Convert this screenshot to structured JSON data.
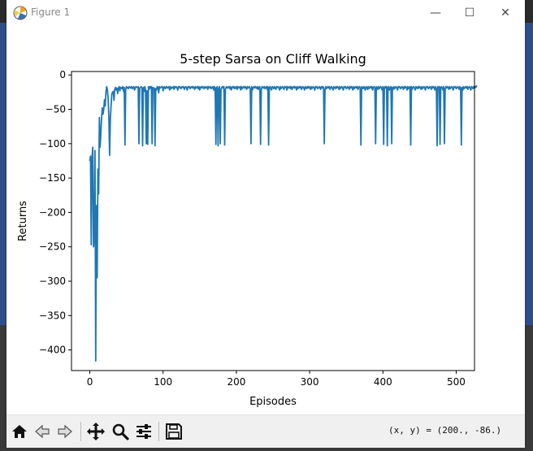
{
  "window": {
    "title": "Figure 1",
    "minimize_symbol": "—",
    "maximize_symbol": "☐",
    "close_symbol": "✕"
  },
  "toolbar": {
    "buttons": [
      "home-icon",
      "back-icon",
      "forward-icon",
      "pan-icon",
      "zoom-icon",
      "configure-subplots-icon",
      "save-icon"
    ],
    "coords_text": "(x, y) = (200., -86.)"
  },
  "chart_data": {
    "type": "line",
    "title": "5-step Sarsa on Cliff Walking",
    "xlabel": "Episodes",
    "ylabel": "Returns",
    "xlim": [
      -25,
      525
    ],
    "ylim": [
      -430,
      5
    ],
    "xticks": [
      0,
      100,
      200,
      300,
      400,
      500
    ],
    "yticks": [
      0,
      -50,
      -100,
      -150,
      -200,
      -250,
      -300,
      -350,
      -400
    ],
    "xtick_labels": [
      "0",
      "100",
      "200",
      "300",
      "400",
      "500"
    ],
    "ytick_labels": [
      "0",
      "−50",
      "−100",
      "−150",
      "−200",
      "−250",
      "−300",
      "−350",
      "−400"
    ],
    "grid": false,
    "line_color": "#1f77b4",
    "series": [
      {
        "values": [
          -125,
          -118,
          -247,
          -120,
          -105,
          -250,
          -240,
          -110,
          -416,
          -190,
          -295,
          -137,
          -173,
          -62,
          -105,
          -86,
          -63,
          -48,
          -57,
          -50,
          -36,
          -45,
          -25,
          -17,
          -22,
          -35,
          -62,
          -117,
          -65,
          -45,
          -28,
          -25,
          -24,
          -37,
          -21,
          -18,
          -22,
          -19,
          -27,
          -20,
          -17,
          -23,
          -18,
          -19,
          -20,
          -17,
          -24,
          -18,
          -102,
          -22,
          -17,
          -19,
          -18,
          -20,
          -17,
          -18,
          -19,
          -17,
          -20,
          -18,
          -17,
          -22,
          -19,
          -17,
          -18,
          -18,
          -17,
          -100,
          -19,
          -18,
          -17,
          -19,
          -103,
          -18,
          -24,
          -17,
          -22,
          -100,
          -23,
          -101,
          -17,
          -21,
          -17,
          -19,
          -17,
          -100,
          -18,
          -20,
          -19,
          -103,
          -20,
          -22,
          -17,
          -18,
          -26,
          -17,
          -19,
          -18,
          -17,
          -17,
          -23,
          -18,
          -17,
          -20,
          -18,
          -17,
          -19,
          -18,
          -17,
          -22,
          -17,
          -20,
          -18,
          -19,
          -17,
          -21,
          -17,
          -18,
          -17,
          -19,
          -22,
          -17,
          -18,
          -17,
          -20,
          -19,
          -17,
          -18,
          -17,
          -21,
          -18,
          -17,
          -19,
          -22,
          -17,
          -18,
          -17,
          -20,
          -18,
          -17,
          -19,
          -17,
          -18,
          -21,
          -17,
          -19,
          -18,
          -17,
          -20,
          -17,
          -22,
          -18,
          -17,
          -19,
          -17,
          -18,
          -20,
          -17,
          -19,
          -18,
          -17,
          -21,
          -17,
          -18,
          -19,
          -17,
          -20,
          -18,
          -17,
          -22,
          -17,
          -19,
          -101,
          -18,
          -17,
          -103,
          -20,
          -17,
          -100,
          -22,
          -18,
          -17,
          -19,
          -17,
          -102,
          -21,
          -18,
          -17,
          -19,
          -18,
          -17,
          -20,
          -17,
          -22,
          -18,
          -17,
          -19,
          -17,
          -20,
          -18,
          -17,
          -21,
          -17,
          -19,
          -18,
          -17,
          -22,
          -17,
          -20,
          -18,
          -17,
          -19,
          -17,
          -18,
          -21,
          -17,
          -19,
          -18,
          -17,
          -20,
          -100,
          -17,
          -22,
          -18,
          -17,
          -19,
          -17,
          -18,
          -20,
          -17,
          -21,
          -18,
          -17,
          -101,
          -22,
          -17,
          -18,
          -19,
          -17,
          -20,
          -18,
          -17,
          -21,
          -17,
          -102,
          -18,
          -17,
          -19,
          -22,
          -17,
          -18,
          -20,
          -17,
          -19,
          -21,
          -17,
          -18,
          -17,
          -19,
          -22,
          -17,
          -20,
          -18,
          -17,
          -19,
          -21,
          -17,
          -18,
          -17,
          -22,
          -17,
          -19,
          -18,
          -17,
          -20,
          -17,
          -21,
          -18,
          -17,
          -19,
          -17,
          -18,
          -22,
          -17,
          -20,
          -18,
          -17,
          -19,
          -17,
          -21,
          -18,
          -17,
          -19,
          -22,
          -17,
          -18,
          -20,
          -17,
          -19,
          -17,
          -18,
          -21,
          -17,
          -20,
          -18,
          -17,
          -19,
          -22,
          -17,
          -18,
          -17,
          -20,
          -19,
          -17,
          -18,
          -21,
          -17,
          -19,
          -17,
          -18,
          -100,
          -22,
          -17,
          -20,
          -18,
          -17,
          -19,
          -17,
          -21,
          -18,
          -17,
          -19,
          -22,
          -17,
          -18,
          -20,
          -17,
          -19,
          -17,
          -18,
          -21,
          -17,
          -20,
          -18,
          -17,
          -19,
          -22,
          -17,
          -18,
          -17,
          -20,
          -19,
          -17,
          -18,
          -21,
          -17,
          -19,
          -17,
          -18,
          -22,
          -17,
          -20,
          -18,
          -17,
          -19,
          -17,
          -21,
          -18,
          -17,
          -19,
          -102,
          -17,
          -18,
          -20,
          -17,
          -19,
          -22,
          -17,
          -18,
          -21,
          -17,
          -20,
          -18,
          -17,
          -19,
          -17,
          -22,
          -18,
          -17,
          -19,
          -100,
          -17,
          -18,
          -21,
          -17,
          -20,
          -18,
          -17,
          -19,
          -22,
          -17,
          -101,
          -18,
          -17,
          -19,
          -17,
          -103,
          -18,
          -17,
          -22,
          -19,
          -17,
          -100,
          -18,
          -21,
          -17,
          -20,
          -18,
          -17,
          -19,
          -22,
          -17,
          -18,
          -17,
          -20,
          -19,
          -17,
          -18,
          -21,
          -17,
          -19,
          -17,
          -18,
          -22,
          -17,
          -20,
          -18,
          -17,
          -102,
          -17,
          -21,
          -18,
          -17,
          -19,
          -22,
          -17,
          -18,
          -20,
          -17,
          -19,
          -17,
          -18,
          -21,
          -17,
          -20,
          -18,
          -17,
          -19,
          -22,
          -17,
          -18,
          -17,
          -20,
          -19,
          -17,
          -18,
          -21,
          -17,
          -19,
          -17,
          -18,
          -22,
          -17,
          -20,
          -103,
          -17,
          -19,
          -17,
          -101,
          -18,
          -17,
          -19,
          -22,
          -17,
          -100,
          -20,
          -17,
          -19,
          -17,
          -18,
          -21,
          -17,
          -20,
          -18,
          -17,
          -19,
          -22,
          -17,
          -18,
          -17,
          -20,
          -19,
          -17,
          -18,
          -21,
          -17,
          -19,
          -102,
          -18,
          -22,
          -17,
          -20,
          -18,
          -17,
          -19,
          -17,
          -21,
          -18,
          -17,
          -19,
          -22,
          -17,
          -18,
          -20,
          -17,
          -19,
          -17,
          -18,
          -15
        ]
      }
    ]
  }
}
